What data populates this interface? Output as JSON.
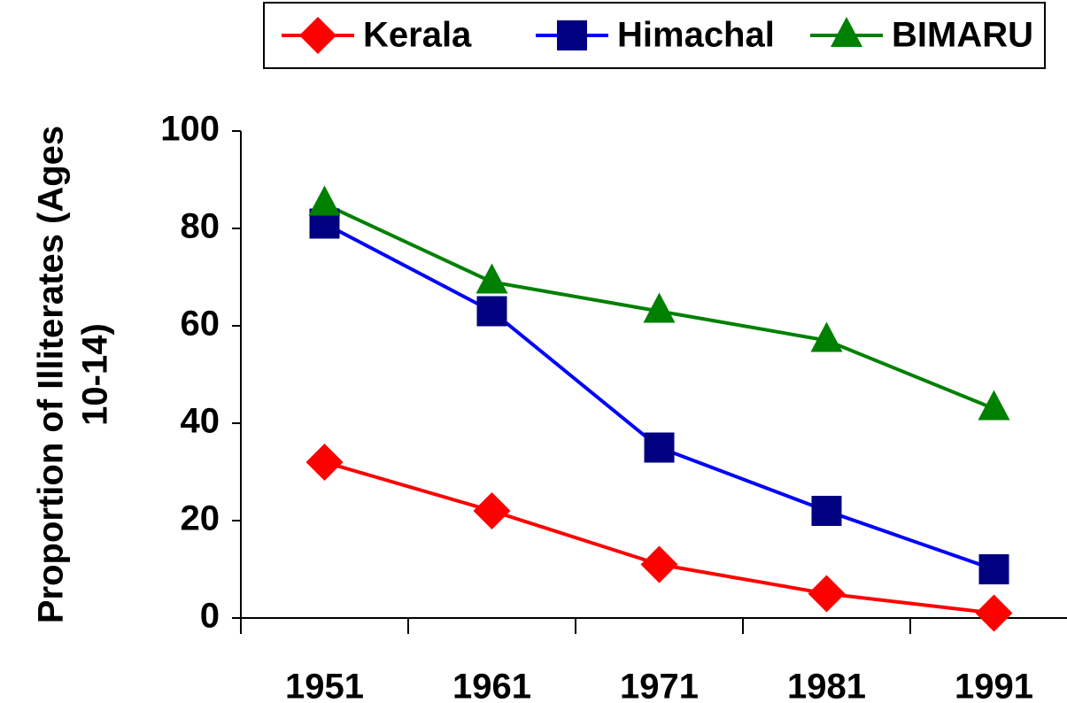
{
  "chart_data": {
    "type": "line",
    "ylabel": [
      "Proportion of Illiterates (Ages",
      "10-14)"
    ],
    "categories": [
      "1951",
      "1961",
      "1971",
      "1981",
      "1991"
    ],
    "series": [
      {
        "name": "Kerala",
        "color": "#ff0000",
        "marker_color": "#ff0000",
        "marker": "diamond",
        "values": [
          32,
          22,
          11,
          5,
          1
        ]
      },
      {
        "name": "Himachal",
        "color": "#0000ff",
        "marker_color": "#000080",
        "marker": "square",
        "values": [
          81,
          63,
          35,
          22,
          10
        ]
      },
      {
        "name": "BIMARU",
        "color": "#008000",
        "marker_color": "#008000",
        "marker": "triangle",
        "values": [
          85,
          69,
          63,
          57,
          43
        ]
      }
    ],
    "ylim": [
      0,
      100
    ],
    "yticks": [
      0,
      20,
      40,
      60,
      80,
      100
    ],
    "legend": "top",
    "grid": false
  }
}
